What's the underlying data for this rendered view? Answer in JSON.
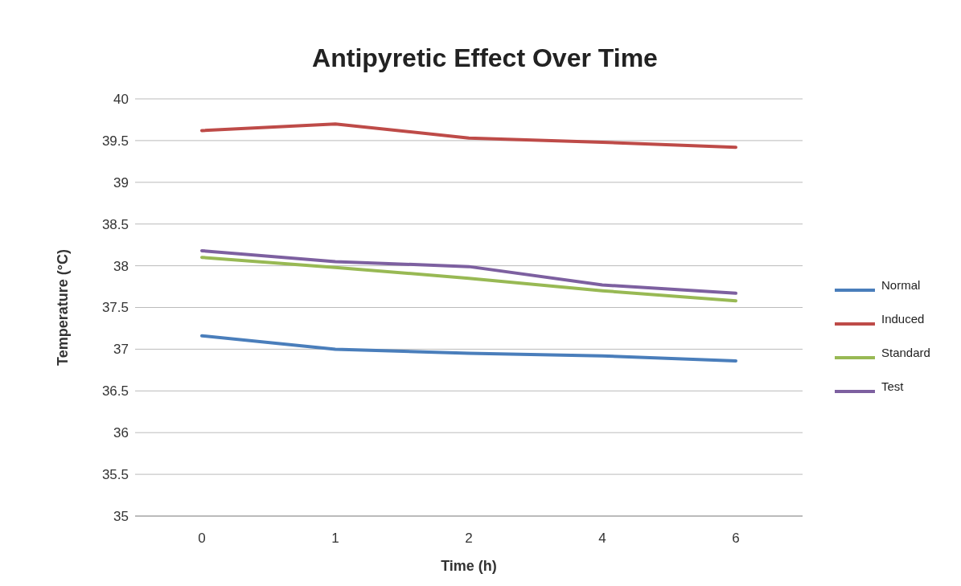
{
  "chart_data": {
    "type": "line",
    "title": "Antipyretic Effect Over Time",
    "xlabel": "Time (h)",
    "ylabel": "Temperature (°C)",
    "categories": [
      "0",
      "1",
      "2",
      "4",
      "6"
    ],
    "ylim": [
      35,
      40
    ],
    "yticks": [
      35,
      35.5,
      36,
      36.5,
      37,
      37.5,
      38,
      38.5,
      39,
      39.5,
      40
    ],
    "grid": "y",
    "legend": "right",
    "marker": "none",
    "line_style": "solid",
    "series": [
      {
        "name": "Normal",
        "color": "#4a7ebb",
        "values": [
          37.16,
          37.0,
          36.95,
          36.92,
          36.86
        ]
      },
      {
        "name": "Induced",
        "color": "#be4b48",
        "values": [
          39.62,
          39.7,
          39.53,
          39.48,
          39.42
        ]
      },
      {
        "name": "Standard",
        "color": "#98b954",
        "values": [
          38.1,
          37.98,
          37.85,
          37.7,
          37.58
        ]
      },
      {
        "name": "Test",
        "color": "#7d60a0",
        "values": [
          38.18,
          38.05,
          37.99,
          37.77,
          37.67
        ]
      }
    ]
  }
}
